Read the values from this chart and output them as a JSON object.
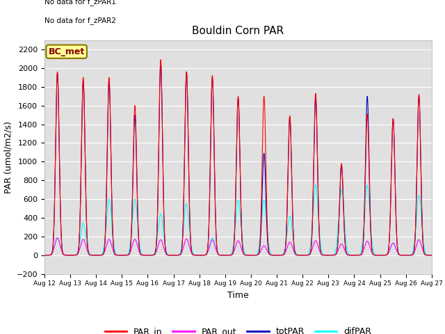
{
  "title": "Bouldin Corn PAR",
  "xlabel": "Time",
  "ylabel": "PAR (umol/m2/s)",
  "ylim": [
    -200,
    2300
  ],
  "yticks": [
    -200,
    0,
    200,
    400,
    600,
    800,
    1000,
    1200,
    1400,
    1600,
    1800,
    2000,
    2200
  ],
  "text_no_data1": "No data for f_zPAR1",
  "text_no_data2": "No data for f_zPAR2",
  "label_box": "BC_met",
  "legend_labels": [
    "PAR_in",
    "PAR_out",
    "totPAR",
    "difPAR"
  ],
  "legend_colors": [
    "#ff0000",
    "#ff00ff",
    "#0000bb",
    "#00ffff"
  ],
  "bg_color": "#e0e0e0",
  "fig_color": "#ffffff",
  "line_width": 0.8,
  "n_days": 15,
  "points_per_day": 144,
  "tot_daily": [
    1950,
    1870,
    1870,
    1500,
    2060,
    1960,
    1900,
    1680,
    1090,
    1480,
    1700,
    970,
    1700,
    1460,
    1700
  ],
  "par_in_daily": [
    1960,
    1900,
    1900,
    1600,
    2090,
    1960,
    1920,
    1700,
    1700,
    1490,
    1730,
    980,
    1510,
    1460,
    1720
  ],
  "dif_daily": [
    185,
    340,
    600,
    600,
    440,
    550,
    185,
    590,
    590,
    415,
    750,
    700,
    750,
    130,
    640
  ],
  "par_out_daily": [
    185,
    170,
    170,
    170,
    165,
    175,
    165,
    155,
    100,
    140,
    155,
    120,
    150,
    130,
    165
  ],
  "sigma_tot": 0.07,
  "sigma_dif": 0.1,
  "sigma_out": 0.1
}
